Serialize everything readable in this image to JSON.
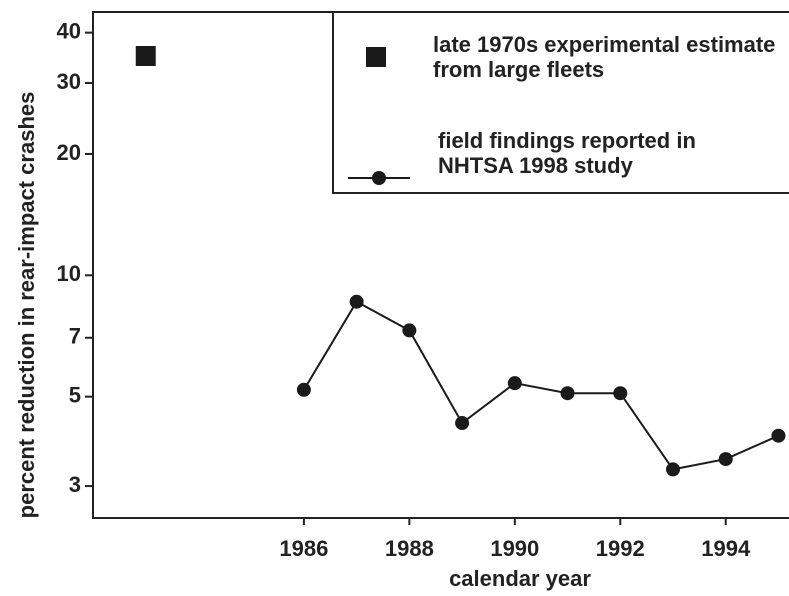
{
  "chart_data": {
    "type": "line",
    "x_label": "calendar year",
    "y_label": "percent reduction in rear-impact crashes",
    "xlim": [
      1982,
      1995.2
    ],
    "xticks": [
      1986,
      1988,
      1990,
      1992,
      1994
    ],
    "ylim": [
      2.5,
      45
    ],
    "yticks": [
      3,
      5,
      7,
      10,
      20,
      30,
      40
    ],
    "log_y": true,
    "legend": "upper right",
    "series": [
      {
        "name": "late 1970s experimental estimate from large fleets",
        "color": "#1a1a1a",
        "marker": "square",
        "line": false,
        "x": [
          1983
        ],
        "values": [
          35
        ]
      },
      {
        "name": "field findings reported in NHTSA 1998 study",
        "color": "#1a1a1a",
        "marker": "circle",
        "line": true,
        "x": [
          1986,
          1987,
          1988,
          1989,
          1990,
          1991,
          1992,
          1993,
          1994,
          1995
        ],
        "values": [
          5.2,
          8.6,
          7.3,
          4.3,
          5.4,
          5.1,
          5.1,
          3.3,
          3.5,
          4.0
        ]
      }
    ]
  }
}
